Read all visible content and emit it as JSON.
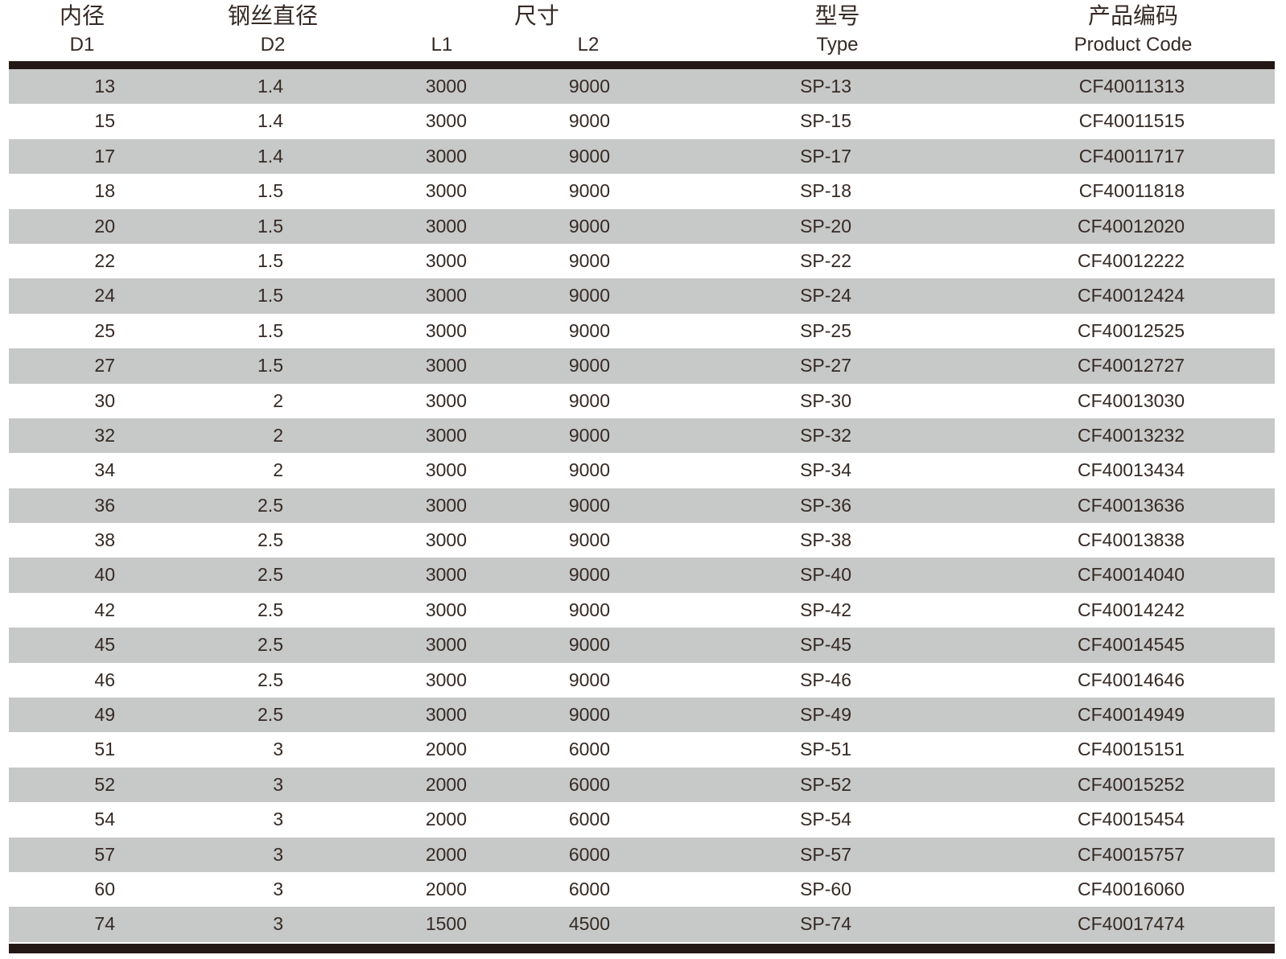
{
  "table": {
    "headers": {
      "inner_diameter_cn": "内径",
      "inner_diameter_sub": "D1",
      "wire_diameter_cn": "钢丝直径",
      "wire_diameter_sub": "D2",
      "size_cn": "尺寸",
      "size_sub_l1": "L1",
      "size_sub_l2": "L2",
      "type_cn": "型号",
      "type_sub": "Type",
      "product_code_cn": "产品编码",
      "product_code_sub": "Product Code"
    },
    "rows": [
      [
        "13",
        "1.4",
        "3000",
        "9000",
        "SP-13",
        "CF40011313"
      ],
      [
        "15",
        "1.4",
        "3000",
        "9000",
        "SP-15",
        "CF40011515"
      ],
      [
        "17",
        "1.4",
        "3000",
        "9000",
        "SP-17",
        "CF40011717"
      ],
      [
        "18",
        "1.5",
        "3000",
        "9000",
        "SP-18",
        "CF40011818"
      ],
      [
        "20",
        "1.5",
        "3000",
        "9000",
        "SP-20",
        "CF40012020"
      ],
      [
        "22",
        "1.5",
        "3000",
        "9000",
        "SP-22",
        "CF40012222"
      ],
      [
        "24",
        "1.5",
        "3000",
        "9000",
        "SP-24",
        "CF40012424"
      ],
      [
        "25",
        "1.5",
        "3000",
        "9000",
        "SP-25",
        "CF40012525"
      ],
      [
        "27",
        "1.5",
        "3000",
        "9000",
        "SP-27",
        "CF40012727"
      ],
      [
        "30",
        "2",
        "3000",
        "9000",
        "SP-30",
        "CF40013030"
      ],
      [
        "32",
        "2",
        "3000",
        "9000",
        "SP-32",
        "CF40013232"
      ],
      [
        "34",
        "2",
        "3000",
        "9000",
        "SP-34",
        "CF40013434"
      ],
      [
        "36",
        "2.5",
        "3000",
        "9000",
        "SP-36",
        "CF40013636"
      ],
      [
        "38",
        "2.5",
        "3000",
        "9000",
        "SP-38",
        "CF40013838"
      ],
      [
        "40",
        "2.5",
        "3000",
        "9000",
        "SP-40",
        "CF40014040"
      ],
      [
        "42",
        "2.5",
        "3000",
        "9000",
        "SP-42",
        "CF40014242"
      ],
      [
        "45",
        "2.5",
        "3000",
        "9000",
        "SP-45",
        "CF40014545"
      ],
      [
        "46",
        "2.5",
        "3000",
        "9000",
        "SP-46",
        "CF40014646"
      ],
      [
        "49",
        "2.5",
        "3000",
        "9000",
        "SP-49",
        "CF40014949"
      ],
      [
        "51",
        "3",
        "2000",
        "6000",
        "SP-51",
        "CF40015151"
      ],
      [
        "52",
        "3",
        "2000",
        "6000",
        "SP-52",
        "CF40015252"
      ],
      [
        "54",
        "3",
        "2000",
        "6000",
        "SP-54",
        "CF40015454"
      ],
      [
        "57",
        "3",
        "2000",
        "6000",
        "SP-57",
        "CF40015757"
      ],
      [
        "60",
        "3",
        "2000",
        "6000",
        "SP-60",
        "CF40016060"
      ],
      [
        "74",
        "3",
        "1500",
        "4500",
        "SP-74",
        "CF40017474"
      ]
    ]
  },
  "colors": {
    "stripe_gray": "#c7c8c8",
    "divider_bar": "#231815",
    "text": "#352a25",
    "background": "#ffffff"
  }
}
